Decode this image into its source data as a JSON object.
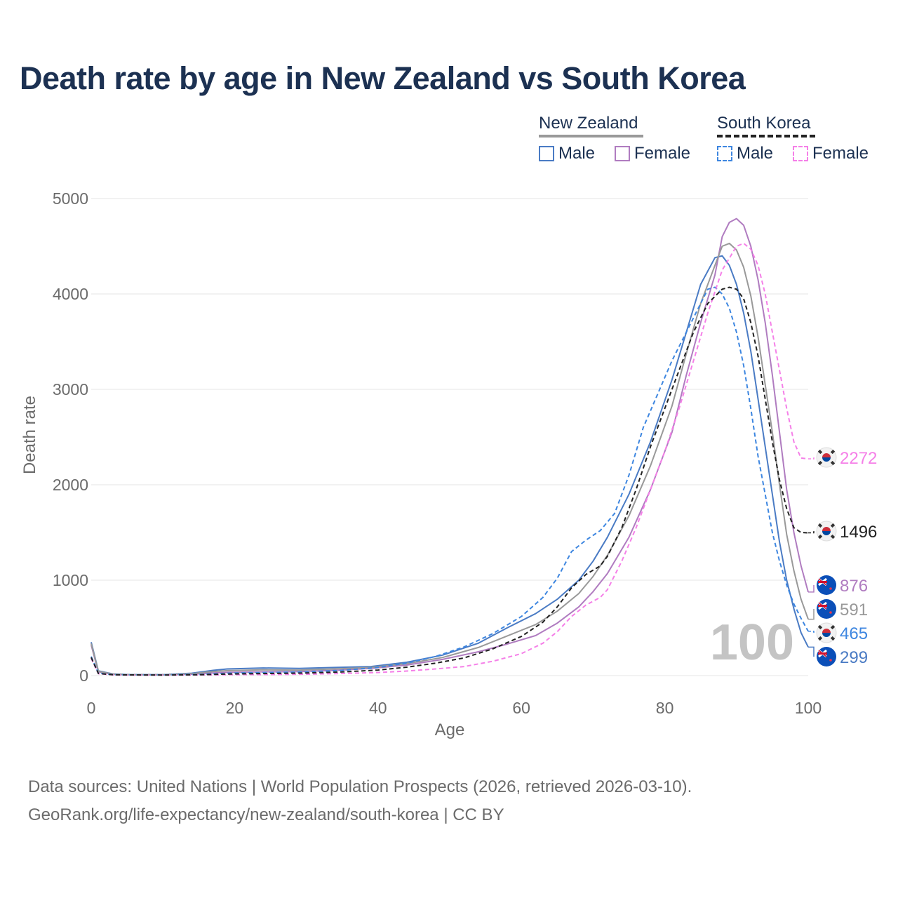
{
  "title": "Death rate by age in New Zealand vs South Korea",
  "legend": {
    "groups": [
      {
        "name": "New Zealand",
        "underline_color": "#999999",
        "underline_style": "solid",
        "items": [
          {
            "label": "Male",
            "color": "#4a7bc4",
            "style": "solid"
          },
          {
            "label": "Female",
            "color": "#b07cc0",
            "style": "solid"
          }
        ]
      },
      {
        "name": "South Korea",
        "underline_color": "#222222",
        "underline_style": "dashed",
        "items": [
          {
            "label": "Male",
            "color": "#3d86e0",
            "style": "dashed"
          },
          {
            "label": "Female",
            "color": "#f580e8",
            "style": "dashed"
          }
        ]
      }
    ]
  },
  "year_watermark": "100",
  "source": {
    "line1": "Data sources: United Nations | World Population Prospects (2026, retrieved 2026-03-10).",
    "line2": "GeoRank.org/life-expectancy/new-zealand/south-korea | CC BY"
  },
  "chart_data": {
    "type": "line",
    "xlabel": "Age",
    "ylabel": "Death rate",
    "xlim": [
      0,
      100
    ],
    "ylim": [
      0,
      5000
    ],
    "x_ticks": [
      0,
      20,
      40,
      60,
      80,
      100
    ],
    "y_ticks": [
      0,
      1000,
      2000,
      3000,
      4000,
      5000
    ],
    "grid": true,
    "series": [
      {
        "name": "New Zealand Male",
        "color": "#4a7bc4",
        "dash": "solid",
        "end_label": "299",
        "end_flag": "new-zealand-flag-icon",
        "points": [
          [
            0,
            350
          ],
          [
            1,
            50
          ],
          [
            3,
            18
          ],
          [
            5,
            12
          ],
          [
            10,
            10
          ],
          [
            14,
            25
          ],
          [
            17,
            55
          ],
          [
            19,
            70
          ],
          [
            24,
            80
          ],
          [
            29,
            75
          ],
          [
            34,
            85
          ],
          [
            39,
            95
          ],
          [
            44,
            140
          ],
          [
            49,
            215
          ],
          [
            54,
            340
          ],
          [
            58,
            500
          ],
          [
            62,
            650
          ],
          [
            65,
            800
          ],
          [
            68,
            1000
          ],
          [
            70,
            1200
          ],
          [
            72,
            1450
          ],
          [
            75,
            1900
          ],
          [
            78,
            2450
          ],
          [
            81,
            3100
          ],
          [
            83,
            3600
          ],
          [
            85,
            4100
          ],
          [
            87,
            4380
          ],
          [
            88,
            4400
          ],
          [
            89,
            4300
          ],
          [
            90,
            4100
          ],
          [
            91,
            3800
          ],
          [
            92,
            3400
          ],
          [
            93,
            2900
          ],
          [
            94,
            2400
          ],
          [
            95,
            1900
          ],
          [
            96,
            1400
          ],
          [
            97,
            1000
          ],
          [
            98,
            700
          ],
          [
            99,
            450
          ],
          [
            100,
            299
          ]
        ]
      },
      {
        "name": "New Zealand Female",
        "color": "#b07cc0",
        "dash": "solid",
        "end_label": "876",
        "end_flag": "new-zealand-flag-icon",
        "points": [
          [
            0,
            320
          ],
          [
            1,
            40
          ],
          [
            3,
            14
          ],
          [
            5,
            9
          ],
          [
            10,
            8
          ],
          [
            14,
            15
          ],
          [
            17,
            28
          ],
          [
            19,
            35
          ],
          [
            24,
            40
          ],
          [
            29,
            42
          ],
          [
            34,
            55
          ],
          [
            39,
            75
          ],
          [
            44,
            110
          ],
          [
            49,
            170
          ],
          [
            54,
            250
          ],
          [
            58,
            330
          ],
          [
            62,
            420
          ],
          [
            65,
            550
          ],
          [
            68,
            720
          ],
          [
            70,
            880
          ],
          [
            72,
            1070
          ],
          [
            75,
            1450
          ],
          [
            78,
            1950
          ],
          [
            81,
            2550
          ],
          [
            83,
            3150
          ],
          [
            85,
            3700
          ],
          [
            87,
            4200
          ],
          [
            88,
            4600
          ],
          [
            89,
            4750
          ],
          [
            90,
            4790
          ],
          [
            91,
            4720
          ],
          [
            92,
            4500
          ],
          [
            93,
            4150
          ],
          [
            94,
            3700
          ],
          [
            95,
            3150
          ],
          [
            96,
            2550
          ],
          [
            97,
            1950
          ],
          [
            98,
            1500
          ],
          [
            99,
            1150
          ],
          [
            100,
            876
          ]
        ]
      },
      {
        "name": "New Zealand (both sexes)",
        "color": "#999999",
        "dash": "solid",
        "end_label": "591",
        "end_flag": "new-zealand-flag-icon",
        "points": [
          [
            0,
            335
          ],
          [
            1,
            45
          ],
          [
            3,
            16
          ],
          [
            5,
            10
          ],
          [
            10,
            9
          ],
          [
            14,
            20
          ],
          [
            17,
            42
          ],
          [
            19,
            52
          ],
          [
            24,
            60
          ],
          [
            29,
            58
          ],
          [
            34,
            70
          ],
          [
            39,
            85
          ],
          [
            44,
            125
          ],
          [
            49,
            190
          ],
          [
            54,
            295
          ],
          [
            58,
            415
          ],
          [
            62,
            535
          ],
          [
            65,
            675
          ],
          [
            68,
            860
          ],
          [
            70,
            1040
          ],
          [
            72,
            1260
          ],
          [
            75,
            1675
          ],
          [
            78,
            2200
          ],
          [
            81,
            2825
          ],
          [
            83,
            3375
          ],
          [
            85,
            3900
          ],
          [
            87,
            4300
          ],
          [
            88,
            4500
          ],
          [
            89,
            4530
          ],
          [
            90,
            4460
          ],
          [
            91,
            4280
          ],
          [
            92,
            3980
          ],
          [
            93,
            3550
          ],
          [
            94,
            3050
          ],
          [
            95,
            2550
          ],
          [
            96,
            2000
          ],
          [
            97,
            1480
          ],
          [
            98,
            1100
          ],
          [
            99,
            800
          ],
          [
            100,
            591
          ]
        ]
      },
      {
        "name": "South Korea Male",
        "color": "#3d86e0",
        "dash": "dashed",
        "end_label": "465",
        "end_flag": "south-korea-flag-icon",
        "points": [
          [
            0,
            200
          ],
          [
            1,
            25
          ],
          [
            3,
            10
          ],
          [
            5,
            8
          ],
          [
            10,
            8
          ],
          [
            15,
            12
          ],
          [
            20,
            28
          ],
          [
            25,
            33
          ],
          [
            30,
            40
          ],
          [
            35,
            55
          ],
          [
            40,
            85
          ],
          [
            44,
            130
          ],
          [
            48,
            200
          ],
          [
            52,
            300
          ],
          [
            56,
            440
          ],
          [
            60,
            620
          ],
          [
            63,
            820
          ],
          [
            65,
            1020
          ],
          [
            67,
            1300
          ],
          [
            69,
            1420
          ],
          [
            71,
            1520
          ],
          [
            73,
            1700
          ],
          [
            75,
            2100
          ],
          [
            77,
            2600
          ],
          [
            79,
            2950
          ],
          [
            81,
            3300
          ],
          [
            83,
            3600
          ],
          [
            85,
            3900
          ],
          [
            86,
            4050
          ],
          [
            87,
            4070
          ],
          [
            88,
            4000
          ],
          [
            89,
            3850
          ],
          [
            90,
            3600
          ],
          [
            91,
            3250
          ],
          [
            92,
            2800
          ],
          [
            93,
            2300
          ],
          [
            94,
            1900
          ],
          [
            95,
            1500
          ],
          [
            96,
            1200
          ],
          [
            97,
            950
          ],
          [
            98,
            750
          ],
          [
            99,
            600
          ],
          [
            100,
            465
          ]
        ]
      },
      {
        "name": "South Korea Female",
        "color": "#f580e8",
        "dash": "dashed",
        "end_label": "2272",
        "end_flag": "south-korea-flag-icon",
        "points": [
          [
            0,
            180
          ],
          [
            1,
            20
          ],
          [
            3,
            8
          ],
          [
            5,
            6
          ],
          [
            10,
            5
          ],
          [
            15,
            7
          ],
          [
            20,
            10
          ],
          [
            25,
            12
          ],
          [
            30,
            15
          ],
          [
            35,
            22
          ],
          [
            40,
            32
          ],
          [
            44,
            48
          ],
          [
            48,
            70
          ],
          [
            52,
            95
          ],
          [
            56,
            150
          ],
          [
            60,
            230
          ],
          [
            63,
            340
          ],
          [
            65,
            460
          ],
          [
            67,
            620
          ],
          [
            69,
            740
          ],
          [
            71,
            820
          ],
          [
            72,
            900
          ],
          [
            74,
            1200
          ],
          [
            76,
            1550
          ],
          [
            78,
            1950
          ],
          [
            80,
            2350
          ],
          [
            82,
            2800
          ],
          [
            84,
            3300
          ],
          [
            86,
            3800
          ],
          [
            88,
            4250
          ],
          [
            90,
            4500
          ],
          [
            91,
            4530
          ],
          [
            92,
            4470
          ],
          [
            93,
            4300
          ],
          [
            94,
            4000
          ],
          [
            95,
            3600
          ],
          [
            96,
            3200
          ],
          [
            97,
            2800
          ],
          [
            98,
            2450
          ],
          [
            99,
            2280
          ],
          [
            100,
            2272
          ]
        ]
      },
      {
        "name": "South Korea (both sexes)",
        "color": "#222222",
        "dash": "dashed",
        "end_label": "1496",
        "end_flag": "south-korea-flag-icon",
        "points": [
          [
            0,
            190
          ],
          [
            1,
            22
          ],
          [
            3,
            9
          ],
          [
            5,
            7
          ],
          [
            10,
            6
          ],
          [
            15,
            9
          ],
          [
            20,
            18
          ],
          [
            25,
            22
          ],
          [
            30,
            27
          ],
          [
            35,
            38
          ],
          [
            40,
            58
          ],
          [
            44,
            88
          ],
          [
            48,
            130
          ],
          [
            52,
            185
          ],
          [
            56,
            280
          ],
          [
            60,
            410
          ],
          [
            63,
            560
          ],
          [
            65,
            720
          ],
          [
            67,
            920
          ],
          [
            69,
            1060
          ],
          [
            71,
            1150
          ],
          [
            72,
            1250
          ],
          [
            74,
            1550
          ],
          [
            76,
            1950
          ],
          [
            78,
            2400
          ],
          [
            80,
            2800
          ],
          [
            82,
            3200
          ],
          [
            84,
            3600
          ],
          [
            86,
            3900
          ],
          [
            88,
            4050
          ],
          [
            89,
            4070
          ],
          [
            90,
            4050
          ],
          [
            91,
            3950
          ],
          [
            92,
            3700
          ],
          [
            93,
            3350
          ],
          [
            94,
            2900
          ],
          [
            95,
            2450
          ],
          [
            96,
            2050
          ],
          [
            97,
            1750
          ],
          [
            98,
            1550
          ],
          [
            99,
            1500
          ],
          [
            100,
            1496
          ]
        ]
      }
    ]
  }
}
